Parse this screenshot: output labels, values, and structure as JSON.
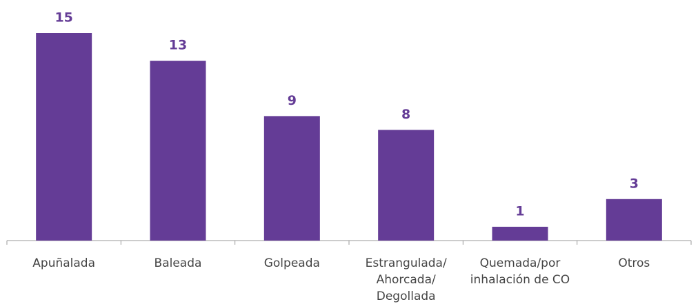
{
  "chart_data": {
    "type": "bar",
    "categories": [
      "Apuñalada",
      "Baleada",
      "Golpeada",
      "Estrangulada/\nAhorcada/\nDegollada",
      "Quemada/por\ninhalación de CO",
      "Otros"
    ],
    "values": [
      15,
      13,
      9,
      8,
      1,
      3
    ],
    "color": "#643c96"
  }
}
